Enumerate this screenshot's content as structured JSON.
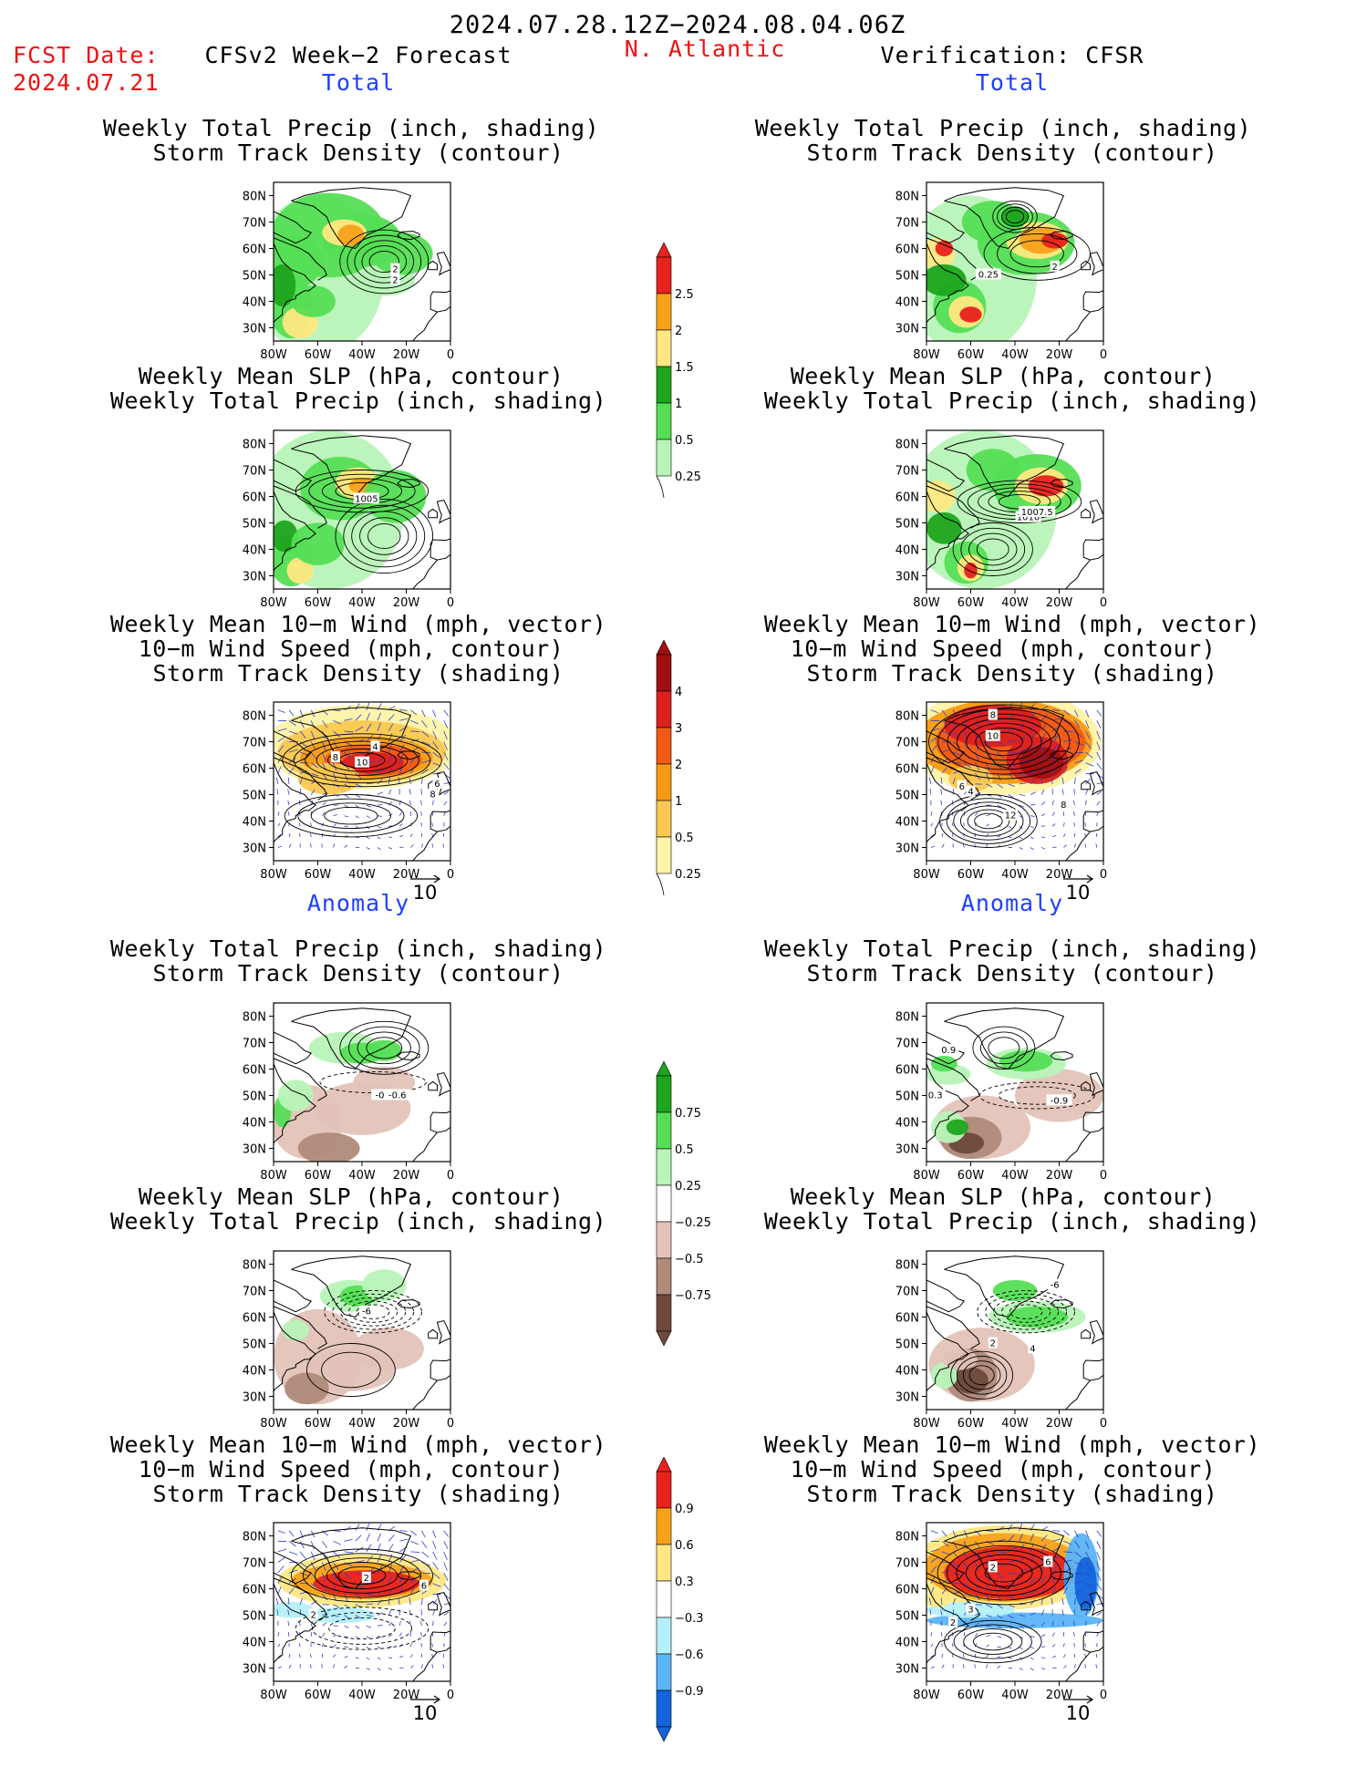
{
  "header": {
    "period": "2024.07.28.12Z−2024.08.04.06Z",
    "fcst_label": "FCST Date:",
    "fcst_date": "2024.07.21",
    "forecast_title": "CFSv2 Week−2 Forecast",
    "region": "N. Atlantic",
    "verification_title": "Verification: CFSR"
  },
  "sections": {
    "total": "Total",
    "anomaly": "Anomaly"
  },
  "titles": {
    "precip_track": [
      "Weekly Total Precip (inch, shading)",
      "Storm Track Density (contour)"
    ],
    "slp_precip": [
      "Weekly Mean SLP (hPa, contour)",
      "Weekly Total Precip (inch, shading)"
    ],
    "wind_track": [
      "Weekly Mean 10−m Wind (mph, vector)",
      "10−m Wind Speed (mph, contour)",
      "Storm Track Density (shading)"
    ]
  },
  "axes": {
    "lat_labels": [
      "80N",
      "70N",
      "60N",
      "50N",
      "40N",
      "30N"
    ],
    "lon_labels": [
      "80W",
      "60W",
      "40W",
      "20W",
      "0"
    ]
  },
  "vector_ref": "10",
  "contour_labels": {
    "fcst_total_precip": [
      "2",
      "2"
    ],
    "cfsr_total_precip": [
      "0.25",
      "2"
    ],
    "fcst_total_slp": [
      "1005"
    ],
    "cfsr_total_slp": [
      "1010",
      "1007.5"
    ],
    "fcst_total_wind": [
      "8",
      "10",
      "4",
      "6",
      "8"
    ],
    "cfsr_total_wind": [
      "8",
      "10",
      "4",
      "6",
      "12",
      "8"
    ],
    "fcst_anom_precip": [
      "-0.9",
      "-0.6"
    ],
    "cfsr_anom_precip": [
      "0.9",
      "0.3",
      "-0.9"
    ],
    "fcst_anom_slp": [
      "-6"
    ],
    "cfsr_anom_slp": [
      "-6",
      "2",
      "4"
    ],
    "fcst_anom_wind": [
      "2",
      "6",
      "2"
    ],
    "cfsr_anom_wind": [
      "2",
      "6",
      "3",
      "2"
    ]
  },
  "colorbars": {
    "precip_total": {
      "labels": [
        "2.5",
        "2",
        "1.5",
        "1",
        "0.5",
        "0.25"
      ],
      "colors": [
        "#e8221e",
        "#f8a21a",
        "#ffe882",
        "#1da51d",
        "#55de55",
        "#b8f4b8"
      ]
    },
    "track_total": {
      "labels": [
        "4",
        "3",
        "2",
        "1",
        "0.5",
        "0.25"
      ],
      "colors": [
        "#a01010",
        "#dc1f1f",
        "#f05a14",
        "#f89a14",
        "#fac850",
        "#fff3a8"
      ]
    },
    "precip_anom": {
      "labels": [
        "0.75",
        "0.5",
        "0.25",
        "−0.25",
        "−0.5",
        "−0.75"
      ],
      "colors": [
        "#1da51d",
        "#55de55",
        "#b8f4b8",
        "#ffffff",
        "#e3c3b8",
        "#b08a7a",
        "#6e4a3c"
      ]
    },
    "track_anom": {
      "labels": [
        "0.9",
        "0.6",
        "0.3",
        "−0.3",
        "−0.6",
        "−0.9"
      ],
      "colors": [
        "#e8221e",
        "#f8a21a",
        "#ffe882",
        "#ffffff",
        "#b4f0f8",
        "#5ab4f8",
        "#1464dc"
      ]
    }
  },
  "colors": {
    "header_red": "#ee1111",
    "section_blue": "#1f3fff",
    "coast": "#000000",
    "wind_vector": "#2d3fd0"
  }
}
